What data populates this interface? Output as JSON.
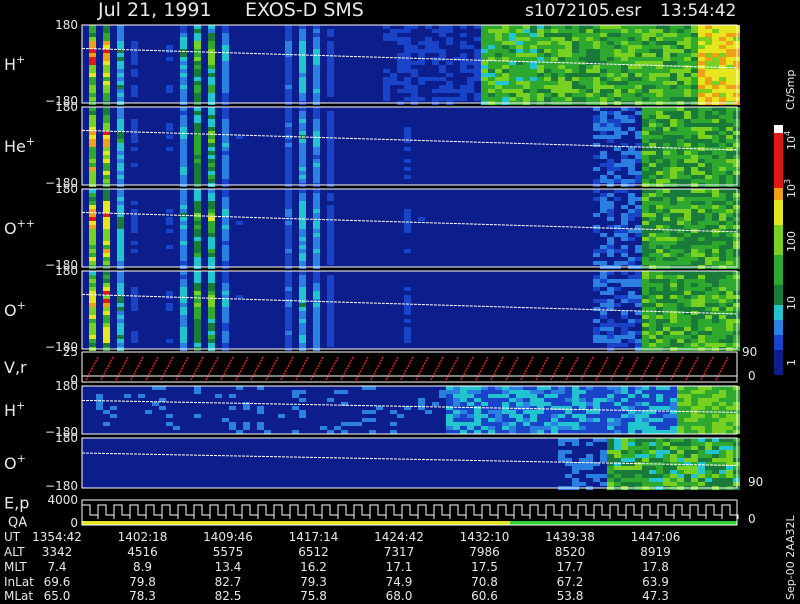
{
  "header": {
    "date": "Jul 21, 1991",
    "instrument": "EXOS-D SMS",
    "file": "s1072105.esr",
    "time": "13:54:42"
  },
  "panels": [
    {
      "label": "H",
      "sup": "+",
      "top": "180",
      "bottom": "−180"
    },
    {
      "label": "He",
      "sup": "+",
      "top": "180",
      "bottom": "−180"
    },
    {
      "label": "O",
      "sup": "++",
      "top": "180",
      "bottom": "−180"
    },
    {
      "label": "O",
      "sup": "+",
      "top": "180",
      "bottom": "−180"
    },
    {
      "label": "V,r",
      "top": "25",
      "bottom": "0",
      "right_top": "90",
      "right_bottom": "0"
    },
    {
      "label": "H",
      "sup": "+",
      "top": "180",
      "bottom": "−180"
    },
    {
      "label": "O",
      "sup": "+",
      "top": "180",
      "bottom": "−180",
      "right_bottom": "90"
    },
    {
      "label": "E,p",
      "label2": "QA",
      "top": "4000",
      "bottom": "0",
      "right_bottom": "0"
    }
  ],
  "colorbar": {
    "title": "Ct/Smp",
    "labels": [
      {
        "base": "10",
        "sup": "4"
      },
      {
        "base": "10",
        "sup": "3"
      },
      {
        "base": "100"
      },
      {
        "base": "10"
      },
      {
        "base": "1"
      }
    ]
  },
  "ephemeris": [
    {
      "label": "UT",
      "values": [
        "1354:42",
        "1402:18",
        "1409:46",
        "1417:14",
        "1424:42",
        "1432:10",
        "1439:38",
        "1447:06"
      ]
    },
    {
      "label": "ALT",
      "values": [
        "3342",
        "4516",
        "5575",
        "6512",
        "7317",
        "7986",
        "8520",
        "8919"
      ]
    },
    {
      "label": "MLT",
      "values": [
        "7.4",
        "8.9",
        "13.4",
        "16.2",
        "17.1",
        "17.5",
        "17.7",
        "17.8"
      ]
    },
    {
      "label": "InLat",
      "values": [
        "69.6",
        "79.8",
        "82.7",
        "79.3",
        "74.9",
        "70.8",
        "67.2",
        "63.9"
      ]
    },
    {
      "label": "MLat",
      "values": [
        "65.0",
        "78.3",
        "82.5",
        "75.8",
        "68.0",
        "60.6",
        "53.8",
        "47.3"
      ]
    }
  ],
  "footer": "Sep-00  2AA32L"
}
